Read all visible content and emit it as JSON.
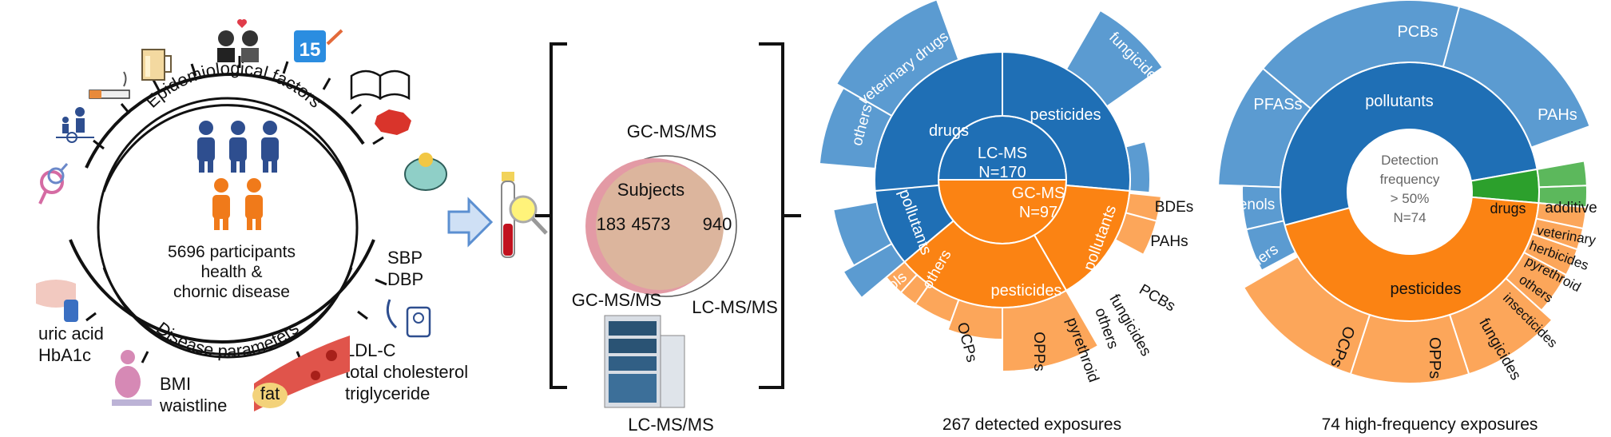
{
  "left_panel": {
    "arc_top_label": "Epidemiological factors",
    "arc_bottom_label": "Disease parameters",
    "center_line1": "5696 participants",
    "center_line2": "health &",
    "center_line3": "chornic disease",
    "calendar_number": "15",
    "outside_labels": {
      "sbp": "SBP",
      "dbp": "DBP",
      "ldl": "LDL-C",
      "total_chol": "total cholesterol",
      "trig": "triglyceride",
      "fat": "fat",
      "bmi": "BMI",
      "waist": "waistline",
      "uric": "uric acid",
      "hba1c": "HbA1c"
    },
    "icons": [
      "gender-icon",
      "family-walk-icon",
      "cigarette-icon",
      "beer-icon",
      "couple-icon",
      "calendar-icon",
      "book-icon",
      "china-map-icon",
      "piggy-bank-icon",
      "blood-pressure-icon",
      "blood-vessel-icon",
      "body-weight-icon",
      "glucose-meter-icon",
      "people-icon",
      "arrow-icon",
      "blood-tube-icon"
    ],
    "colors": {
      "people_blue": "#2e4e8f",
      "people_orange": "#f07a1a",
      "arrow": "#5b8fd1"
    }
  },
  "middle_panel": {
    "gcms_top": "GC-MS/MS",
    "subjects": "Subjects",
    "left_count": "183",
    "center_count": "4573",
    "right_count": "940",
    "gcms_bottom": "GC-MS/MS",
    "lcms_right": "LC-MS/MS",
    "lcms_bottom": "LC-MS/MS",
    "colors": {
      "venn_fill": "#dcb59d",
      "venn_left": "#e39aa5"
    }
  },
  "sunburst1": {
    "caption": "267 detected exposures",
    "center_lc_line1": "LC-MS",
    "center_lc_line2": "N=170",
    "center_gc_line1": "GC-MS",
    "center_gc_line2": "N=97",
    "ring2": {
      "drugs": "drugs",
      "pesticides_lc": "pesticides",
      "pollutants_lc": "pollutants",
      "pollutants_gc": "pollutants",
      "pesticides_gc": "pesticides"
    },
    "ring3": {
      "veterinary_drugs": "veterinary drugs",
      "others_drugs": "others",
      "fungicides_lc": "fungicides",
      "bdes": "BDEs",
      "pahs": "PAHs",
      "pcbs": "PCBs",
      "phenols": "phenols",
      "others_poll": "others",
      "ocps": "OCPs",
      "opps": "OPPs",
      "pyrethroid": "pyrethroid",
      "others_pest": "others",
      "fungicides_gc": "fungicides"
    },
    "colors": {
      "dark_blue": "#1f6fb5",
      "light_blue": "#5b9bd1",
      "dark_orange": "#fb8313",
      "light_orange": "#fca65a"
    }
  },
  "sunburst2": {
    "caption": "74 high-frequency exposures",
    "center_line1": "Detection",
    "center_line2": "frequency",
    "center_line3": "> 50%",
    "center_line4": "N=74",
    "ring2": {
      "pollutants": "pollutants",
      "pesticides": "pesticides",
      "drugs": "drugs"
    },
    "ring3": {
      "pcbs": "PCBs",
      "pfass": "PFASs",
      "pahs": "PAHs",
      "phenols": "phenols",
      "others_poll": "others",
      "additive": "additive",
      "veterinary": "veterinary",
      "herbicides": "herbicides",
      "pyrethroid": "pyrethroid",
      "others_pest": "others",
      "insecticides": "insecticides",
      "fungicides": "fungicides",
      "opps": "OPPs",
      "ocps": "OCPs"
    },
    "colors": {
      "dark_blue": "#1f6fb5",
      "light_blue": "#5b9bd1",
      "dark_orange": "#fb8313",
      "light_orange": "#fca65a",
      "dark_green": "#2ca02c",
      "light_green": "#5cb85c"
    }
  }
}
